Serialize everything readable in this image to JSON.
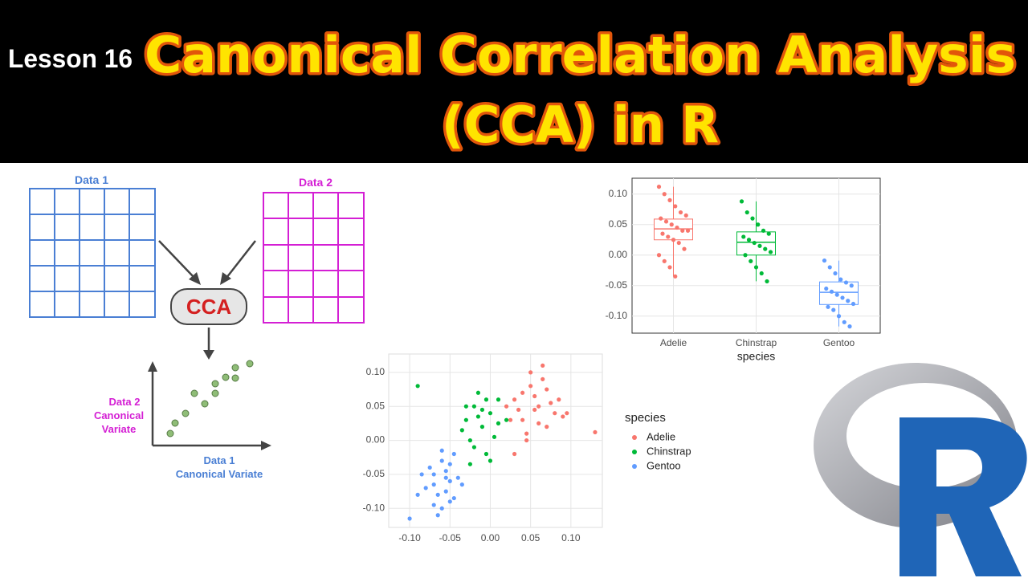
{
  "header": {
    "lesson": "Lesson 16",
    "title_line1": "Canonical Correlation Analysis",
    "title_line2": "(CCA) in R"
  },
  "diagram": {
    "data1": "Data 1",
    "data2": "Data 2",
    "cca": "CCA",
    "y_label": [
      "Data 2",
      "Canonical",
      "Variate"
    ],
    "x_label": [
      "Data 1",
      "Canonical Variate"
    ]
  },
  "chart_data": [
    {
      "type": "box",
      "x_label": "species",
      "categories": [
        "Adelie",
        "Chinstrap",
        "Gentoo"
      ],
      "ylim": [
        -0.128,
        0.126
      ],
      "yticks": [
        {
          "value": -0.1,
          "label": "-0.10"
        },
        -0.05,
        {
          "value": 0,
          "label": "0.00"
        },
        0.05,
        {
          "value": 0.1,
          "label": "0.10"
        }
      ],
      "grid": true,
      "series": [
        {
          "name": "Adelie",
          "color": "#f8766d",
          "whisker_low": -0.035,
          "q1": 0.025,
          "median": 0.043,
          "q3": 0.059,
          "whisker_high": 0.112,
          "points": [
            0.112,
            0.1,
            0.09,
            0.08,
            0.07,
            0.065,
            0.06,
            0.055,
            0.05,
            0.045,
            0.04,
            0.04,
            0.035,
            0.03,
            0.025,
            0.02,
            0.01,
            0.0,
            -0.01,
            -0.02,
            -0.035
          ]
        },
        {
          "name": "Chinstrap",
          "color": "#00ba38",
          "whisker_low": -0.043,
          "q1": 0.0,
          "median": 0.021,
          "q3": 0.038,
          "whisker_high": 0.088,
          "points": [
            0.088,
            0.07,
            0.06,
            0.05,
            0.04,
            0.035,
            0.03,
            0.025,
            0.02,
            0.015,
            0.01,
            0.005,
            0.0,
            -0.01,
            -0.02,
            -0.03,
            -0.043
          ]
        },
        {
          "name": "Gentoo",
          "color": "#619cff",
          "whisker_low": -0.117,
          "q1": -0.081,
          "median": -0.061,
          "q3": -0.044,
          "whisker_high": -0.009,
          "points": [
            -0.009,
            -0.02,
            -0.03,
            -0.04,
            -0.045,
            -0.05,
            -0.055,
            -0.06,
            -0.065,
            -0.07,
            -0.075,
            -0.08,
            -0.085,
            -0.09,
            -0.1,
            -0.11,
            -0.117
          ]
        }
      ]
    },
    {
      "type": "scatter",
      "legend_title": "species",
      "xlim": [
        -0.126,
        0.139
      ],
      "ylim": [
        -0.128,
        0.127
      ],
      "xticks": [
        {
          "value": -0.1,
          "label": "-0.10"
        },
        -0.05,
        {
          "value": 0,
          "label": "0.00"
        },
        0.05,
        {
          "value": 0.1,
          "label": "0.10"
        }
      ],
      "yticks": [
        {
          "value": -0.1,
          "label": "-0.10"
        },
        -0.05,
        {
          "value": 0,
          "label": "0.00"
        },
        0.05,
        {
          "value": 0.1,
          "label": "0.10"
        }
      ],
      "grid": true,
      "series": [
        {
          "name": "Adelie",
          "color": "#f8766d",
          "x": [
            0.03,
            0.04,
            0.05,
            0.06,
            0.07,
            0.08,
            0.045,
            0.055,
            0.035,
            0.065,
            0.075,
            0.025,
            0.09,
            0.05,
            0.04,
            0.06,
            0.07,
            0.03,
            0.085,
            0.055,
            0.045,
            0.02,
            0.095,
            0.13,
            0.065
          ],
          "y": [
            0.06,
            0.03,
            0.08,
            0.05,
            0.02,
            0.04,
            0.01,
            0.065,
            0.045,
            0.09,
            0.055,
            0.03,
            0.035,
            0.1,
            0.07,
            0.025,
            0.075,
            -0.02,
            0.06,
            0.045,
            0.0,
            0.05,
            0.04,
            0.012,
            0.11
          ]
        },
        {
          "name": "Chinstrap",
          "color": "#00ba38",
          "x": [
            -0.03,
            -0.02,
            -0.01,
            0.0,
            -0.025,
            -0.015,
            -0.005,
            0.01,
            -0.035,
            -0.02,
            -0.01,
            0.005,
            -0.03,
            0.0,
            -0.015,
            -0.09,
            -0.025,
            0.02,
            0.01,
            -0.005
          ],
          "y": [
            0.03,
            0.05,
            0.02,
            0.04,
            0.0,
            0.035,
            0.06,
            0.025,
            0.015,
            -0.01,
            0.045,
            0.005,
            0.05,
            -0.03,
            0.07,
            0.08,
            -0.035,
            0.03,
            0.06,
            -0.02
          ]
        },
        {
          "name": "Gentoo",
          "color": "#619cff",
          "x": [
            -0.07,
            -0.06,
            -0.05,
            -0.08,
            -0.065,
            -0.055,
            -0.045,
            -0.075,
            -0.06,
            -0.05,
            -0.07,
            -0.04,
            -0.085,
            -0.065,
            -0.055,
            -0.05,
            -0.09,
            -0.035,
            -0.06,
            -0.1,
            -0.07,
            -0.045,
            -0.055
          ],
          "y": [
            -0.05,
            -0.03,
            -0.06,
            -0.07,
            -0.08,
            -0.045,
            -0.02,
            -0.04,
            -0.1,
            -0.09,
            -0.065,
            -0.055,
            -0.05,
            -0.11,
            -0.075,
            -0.035,
            -0.08,
            -0.065,
            -0.015,
            -0.115,
            -0.095,
            -0.085,
            -0.055
          ]
        }
      ]
    }
  ]
}
